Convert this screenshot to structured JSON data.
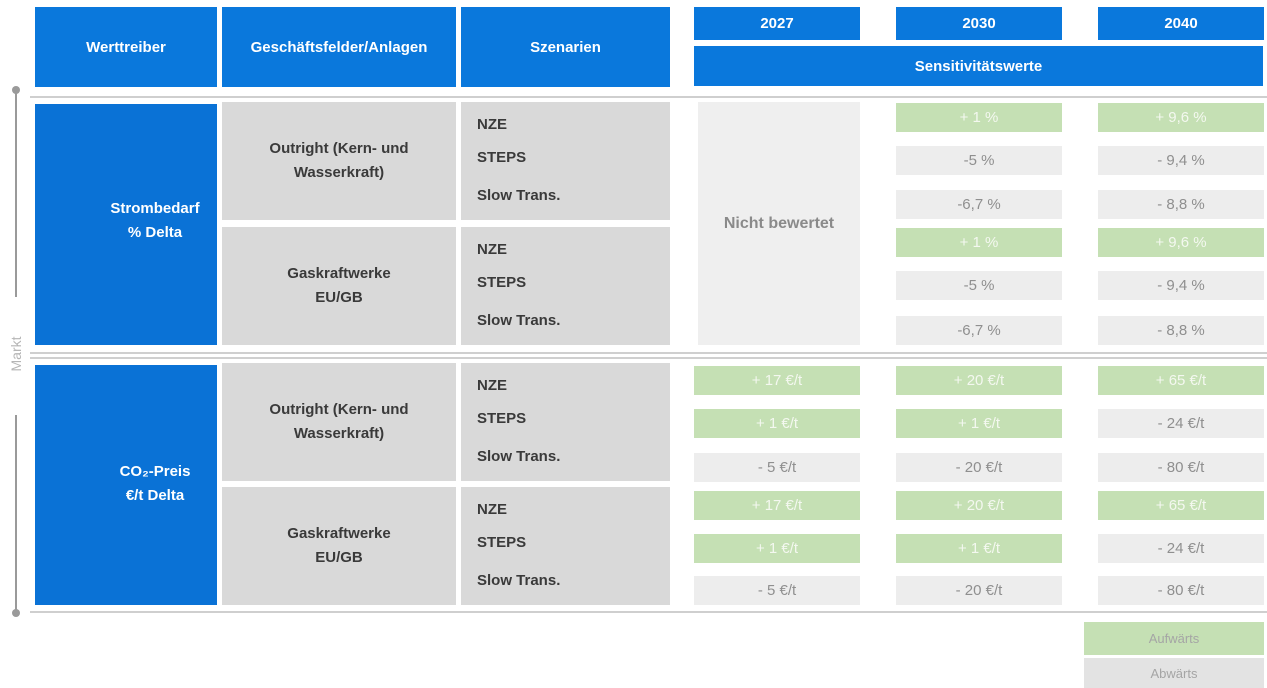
{
  "header": {
    "columns": [
      "Werttreiber",
      "Geschäftsfelder/Anlagen",
      "Szenarien"
    ],
    "years": [
      "2027",
      "2030",
      "2040"
    ],
    "subheader": "Sensitivitätswerte"
  },
  "side_label": "Markt",
  "sections": [
    {
      "driver": [
        "Strombedarf",
        "% Delta"
      ],
      "not_rated": "Nicht bewertet",
      "groups": [
        {
          "name": "Outright (Kern- und Wasserkraft)",
          "scenarios": [
            "NZE",
            "STEPS",
            "Slow Trans."
          ],
          "values": [
            [
              {
                "text": "+ 1 %",
                "color": "#c5e0b4"
              },
              {
                "text": "+ 9,6 %",
                "color": "#c5e0b4"
              }
            ],
            [
              {
                "text": "-5 %",
                "color": "#ededed"
              },
              {
                "text": "- 9,4 %",
                "color": "#ededed"
              }
            ],
            [
              {
                "text": "-6,7 %",
                "color": "#ededed"
              },
              {
                "text": "- 8,8 %",
                "color": "#ededed"
              }
            ]
          ]
        },
        {
          "name": "Gaskraftwerke EU/GB",
          "scenarios": [
            "NZE",
            "STEPS",
            "Slow Trans."
          ],
          "values": [
            [
              {
                "text": "+ 1 %",
                "color": "#c5e0b4"
              },
              {
                "text": "+ 9,6 %",
                "color": "#c5e0b4"
              }
            ],
            [
              {
                "text": "-5 %",
                "color": "#ededed"
              },
              {
                "text": "- 9,4 %",
                "color": "#ededed"
              }
            ],
            [
              {
                "text": "-6,7 %",
                "color": "#ededed"
              },
              {
                "text": "- 8,8 %",
                "color": "#ededed"
              }
            ]
          ]
        }
      ]
    },
    {
      "driver": [
        "CO₂-Preis",
        "€/t Delta"
      ],
      "groups": [
        {
          "name": "Outright (Kern- und Wasserkraft)",
          "scenarios": [
            "NZE",
            "STEPS",
            "Slow Trans."
          ],
          "values": [
            [
              {
                "text": "+ 17 €/t",
                "color": "#c5e0b4"
              },
              {
                "text": "+ 20 €/t",
                "color": "#c5e0b4"
              },
              {
                "text": "+ 65 €/t",
                "color": "#c5e0b4"
              }
            ],
            [
              {
                "text": "+ 1 €/t",
                "color": "#c5e0b4"
              },
              {
                "text": "+ 1 €/t",
                "color": "#c5e0b4"
              },
              {
                "text": "- 24 €/t",
                "color": "#ededed"
              }
            ],
            [
              {
                "text": "- 5 €/t",
                "color": "#ededed"
              },
              {
                "text": "- 20 €/t",
                "color": "#ededed"
              },
              {
                "text": "- 80 €/t",
                "color": "#ededed"
              }
            ]
          ]
        },
        {
          "name": "Gaskraftwerke EU/GB",
          "scenarios": [
            "NZE",
            "STEPS",
            "Slow Trans."
          ],
          "values": [
            [
              {
                "text": "+ 17 €/t",
                "color": "#c5e0b4"
              },
              {
                "text": "+ 20 €/t",
                "color": "#c5e0b4"
              },
              {
                "text": "+ 65 €/t",
                "color": "#c5e0b4"
              }
            ],
            [
              {
                "text": "+ 1 €/t",
                "color": "#c5e0b4"
              },
              {
                "text": "+ 1 €/t",
                "color": "#c5e0b4"
              },
              {
                "text": "- 24 €/t",
                "color": "#ededed"
              }
            ],
            [
              {
                "text": "- 5 €/t",
                "color": "#ededed"
              },
              {
                "text": "- 20 €/t",
                "color": "#ededed"
              },
              {
                "text": "- 80 €/t",
                "color": "#ededed"
              }
            ]
          ]
        }
      ]
    }
  ],
  "legend": [
    {
      "text": "Aufwärts",
      "color": "#c5e0b4"
    },
    {
      "text": "Abwärts",
      "color": "#e3e3e3"
    }
  ]
}
